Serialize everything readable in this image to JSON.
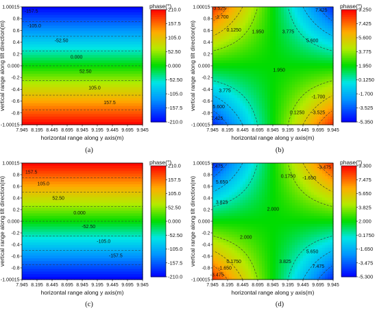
{
  "chart_data": [
    {
      "type": "heatmap",
      "panel_label": "(a)",
      "pattern": "horizontal",
      "xlabel": "horizontal range along y axis(m)",
      "ylabel": "vertical range along tilt direction(m)",
      "x_ticks": [
        "7.945",
        "8.195",
        "8.445",
        "8.695",
        "8.945",
        "9.195",
        "9.445",
        "9.695",
        "9.945"
      ],
      "y_ticks": [
        "1.00015",
        "0.8",
        "0.6",
        "0.4",
        "0.2",
        "0.000",
        "-0.2",
        "-0.4",
        "-0.6",
        "-0.8",
        "-1.00015"
      ],
      "colorbar": {
        "title": "phase(°)",
        "ticks": [
          "210.0",
          "157.5",
          "105.0",
          "52.50",
          "0.000",
          "-52.50",
          "-105.0",
          "-157.5",
          "-210.0"
        ],
        "range": [
          -210,
          210
        ]
      },
      "contour_labels": [
        {
          "text": "-157.5",
          "x": 8.1,
          "y": 0.9
        },
        {
          "text": "-105.0",
          "x": 8.15,
          "y": 0.65
        },
        {
          "text": "-52.50",
          "x": 8.6,
          "y": 0.4
        },
        {
          "text": "0.000",
          "x": 8.85,
          "y": 0.12
        },
        {
          "text": "52.50",
          "x": 9.0,
          "y": -0.12
        },
        {
          "text": "105.0",
          "x": 9.15,
          "y": -0.4
        },
        {
          "text": "157.5",
          "x": 9.4,
          "y": -0.65
        }
      ]
    },
    {
      "type": "heatmap",
      "panel_label": "(b)",
      "pattern": "saddle",
      "sign": -1,
      "xlabel": "horizontal range along y axis(m)",
      "ylabel": "vertical range along tilt direction(m)",
      "x_ticks": [
        "7.945",
        "8.195",
        "8.445",
        "8.695",
        "8.945",
        "9.195",
        "9.445",
        "9.695",
        "9.945"
      ],
      "y_ticks": [
        "1.00015",
        "0.8",
        "0.6",
        "0.4",
        "0.2",
        "0.000",
        "-0.2",
        "-0.4",
        "-0.6",
        "-0.8",
        "-1.00015"
      ],
      "colorbar": {
        "title": "phase(°)",
        "ticks": [
          "9.250",
          "7.425",
          "5.600",
          "3.775",
          "1.950",
          "0.1250",
          "-1.700",
          "-3.525",
          "-5.350"
        ],
        "range": [
          -5.35,
          9.25
        ]
      },
      "contour_labels": [
        {
          "text": "-3.525",
          "x": 8.05,
          "y": 0.95
        },
        {
          "text": "-1.700",
          "x": 8.1,
          "y": 0.8
        },
        {
          "text": "0.1250",
          "x": 8.3,
          "y": 0.58
        },
        {
          "text": "1.950",
          "x": 8.7,
          "y": 0.55
        },
        {
          "text": "3.775",
          "x": 9.2,
          "y": 0.55
        },
        {
          "text": "5.600",
          "x": 9.6,
          "y": 0.4
        },
        {
          "text": "7.425",
          "x": 9.75,
          "y": 0.92
        },
        {
          "text": "3.775",
          "x": 8.15,
          "y": -0.45
        },
        {
          "text": "1.950",
          "x": 9.05,
          "y": -0.1
        },
        {
          "text": "5.600",
          "x": 8.05,
          "y": -0.72
        },
        {
          "text": "7.425",
          "x": 8.02,
          "y": -0.92
        },
        {
          "text": "0.1250",
          "x": 9.35,
          "y": -0.82
        },
        {
          "text": "-1.700",
          "x": 9.7,
          "y": -0.55
        },
        {
          "text": "-3.525",
          "x": 9.7,
          "y": -0.82
        }
      ]
    },
    {
      "type": "heatmap",
      "panel_label": "(c)",
      "pattern": "horizontal_reversed",
      "xlabel": "horizontal range along y axis(m)",
      "ylabel": "vertical range along tilt direction(m)",
      "x_ticks": [
        "7.945",
        "8.195",
        "8.445",
        "8.695",
        "8.945",
        "9.195",
        "9.445",
        "9.695",
        "9.945"
      ],
      "y_ticks": [
        "1.00015",
        "0.8",
        "0.6",
        "0.4",
        "0.2",
        "0.000",
        "-0.2",
        "-0.4",
        "-0.6",
        "-0.8",
        "-1.00015"
      ],
      "colorbar": {
        "title": "phase(°)",
        "ticks": [
          "210.0",
          "157.5",
          "105.0",
          "52.50",
          "0.000",
          "-52.50",
          "-105.0",
          "-157.5",
          "-210.0"
        ],
        "range": [
          -210,
          210
        ]
      },
      "contour_labels": [
        {
          "text": "157.5",
          "x": 8.1,
          "y": 0.82
        },
        {
          "text": "105.0",
          "x": 8.3,
          "y": 0.62
        },
        {
          "text": "52.50",
          "x": 8.55,
          "y": 0.37
        },
        {
          "text": "0.000",
          "x": 8.9,
          "y": 0.12
        },
        {
          "text": "-52.50",
          "x": 9.05,
          "y": -0.12
        },
        {
          "text": "-105.0",
          "x": 9.3,
          "y": -0.37
        },
        {
          "text": "-157.5",
          "x": 9.5,
          "y": -0.62
        }
      ]
    },
    {
      "type": "heatmap",
      "panel_label": "(d)",
      "pattern": "saddle",
      "sign": 1,
      "xlabel": "horizontal range along y axis(m)",
      "ylabel": "vertical range along tilt direction(m)",
      "x_ticks": [
        "7.945",
        "8.195",
        "8.445",
        "8.695",
        "8.945",
        "9.195",
        "9.445",
        "9.695",
        "9.945"
      ],
      "y_ticks": [
        "1.00015",
        "0.8",
        "0.6",
        "0.4",
        "0.2",
        "0.000",
        "-0.2",
        "-0.4",
        "-0.6",
        "-0.8",
        "-1.00015"
      ],
      "colorbar": {
        "title": "phase(°)",
        "ticks": [
          "9.300",
          "7.475",
          "5.650",
          "3.825",
          "2.000",
          "0.1750",
          "-1.650",
          "-3.475",
          "-5.300"
        ],
        "range": [
          -5.3,
          9.3
        ]
      },
      "contour_labels": [
        {
          "text": "7.475",
          "x": 8.02,
          "y": 0.92
        },
        {
          "text": "5.650",
          "x": 8.1,
          "y": 0.65
        },
        {
          "text": "3.825",
          "x": 8.1,
          "y": 0.3
        },
        {
          "text": "0.1750",
          "x": 9.2,
          "y": 0.75
        },
        {
          "text": "-1.650",
          "x": 9.55,
          "y": 0.72
        },
        {
          "text": "-3.475",
          "x": 9.8,
          "y": 0.9
        },
        {
          "text": "2.000",
          "x": 8.95,
          "y": 0.18
        },
        {
          "text": "2.000",
          "x": 8.5,
          "y": -0.3
        },
        {
          "text": "0.1750",
          "x": 8.3,
          "y": -0.72
        },
        {
          "text": "-1.650",
          "x": 8.15,
          "y": -0.83
        },
        {
          "text": "-3.475",
          "x": 8.02,
          "y": -0.95
        },
        {
          "text": "3.825",
          "x": 9.15,
          "y": -0.72
        },
        {
          "text": "5.650",
          "x": 9.6,
          "y": -0.55
        },
        {
          "text": "7.475",
          "x": 9.7,
          "y": -0.8
        }
      ]
    }
  ]
}
